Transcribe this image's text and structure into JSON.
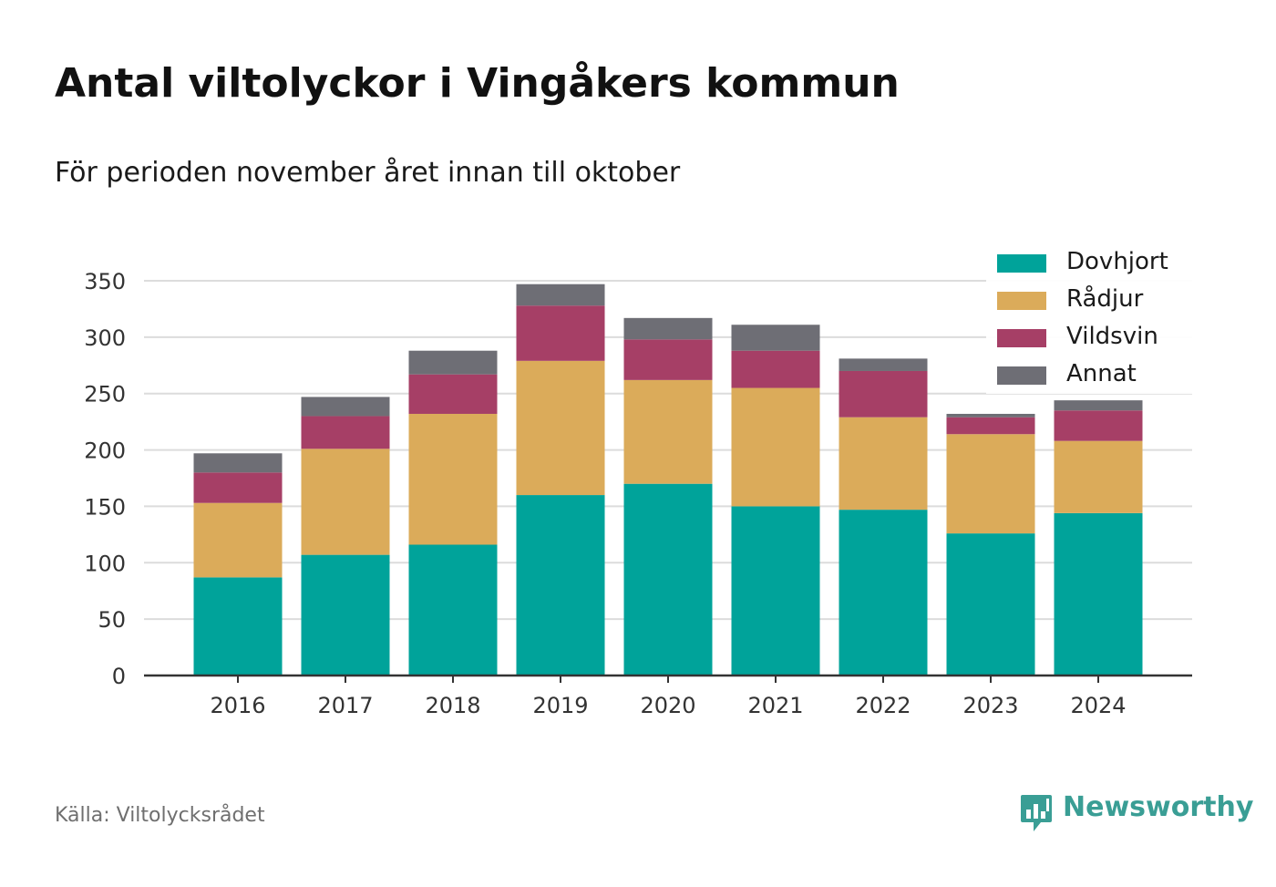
{
  "title": "Antal viltolyckor i Vingåkers kommun",
  "subtitle": "För perioden november året innan till oktober",
  "source": "Källa: Viltolycksrådet",
  "brand": {
    "name": "Newsworthy",
    "logo_icon": "chart-speech-bubble-icon",
    "color": "#3a9e95"
  },
  "chart_data": {
    "type": "bar",
    "stacked": true,
    "categories": [
      "2016",
      "2017",
      "2018",
      "2019",
      "2020",
      "2021",
      "2022",
      "2023",
      "2024"
    ],
    "series": [
      {
        "name": "Dovhjort",
        "color": "#00a39a",
        "values": [
          87,
          107,
          116,
          160,
          170,
          150,
          147,
          126,
          144
        ]
      },
      {
        "name": "Rådjur",
        "color": "#dbab5a",
        "values": [
          66,
          94,
          116,
          119,
          92,
          105,
          82,
          88,
          64
        ]
      },
      {
        "name": "Vildsvin",
        "color": "#a63f66",
        "values": [
          27,
          29,
          35,
          49,
          36,
          33,
          41,
          15,
          27
        ]
      },
      {
        "name": "Annat",
        "color": "#6e6e75",
        "values": [
          17,
          17,
          21,
          19,
          19,
          23,
          11,
          3,
          9
        ]
      }
    ],
    "yticks": [
      "0",
      "50",
      "100",
      "150",
      "200",
      "250",
      "300",
      "350"
    ],
    "ylim": [
      0,
      350
    ],
    "grid": true,
    "legend_position": "top-right"
  }
}
